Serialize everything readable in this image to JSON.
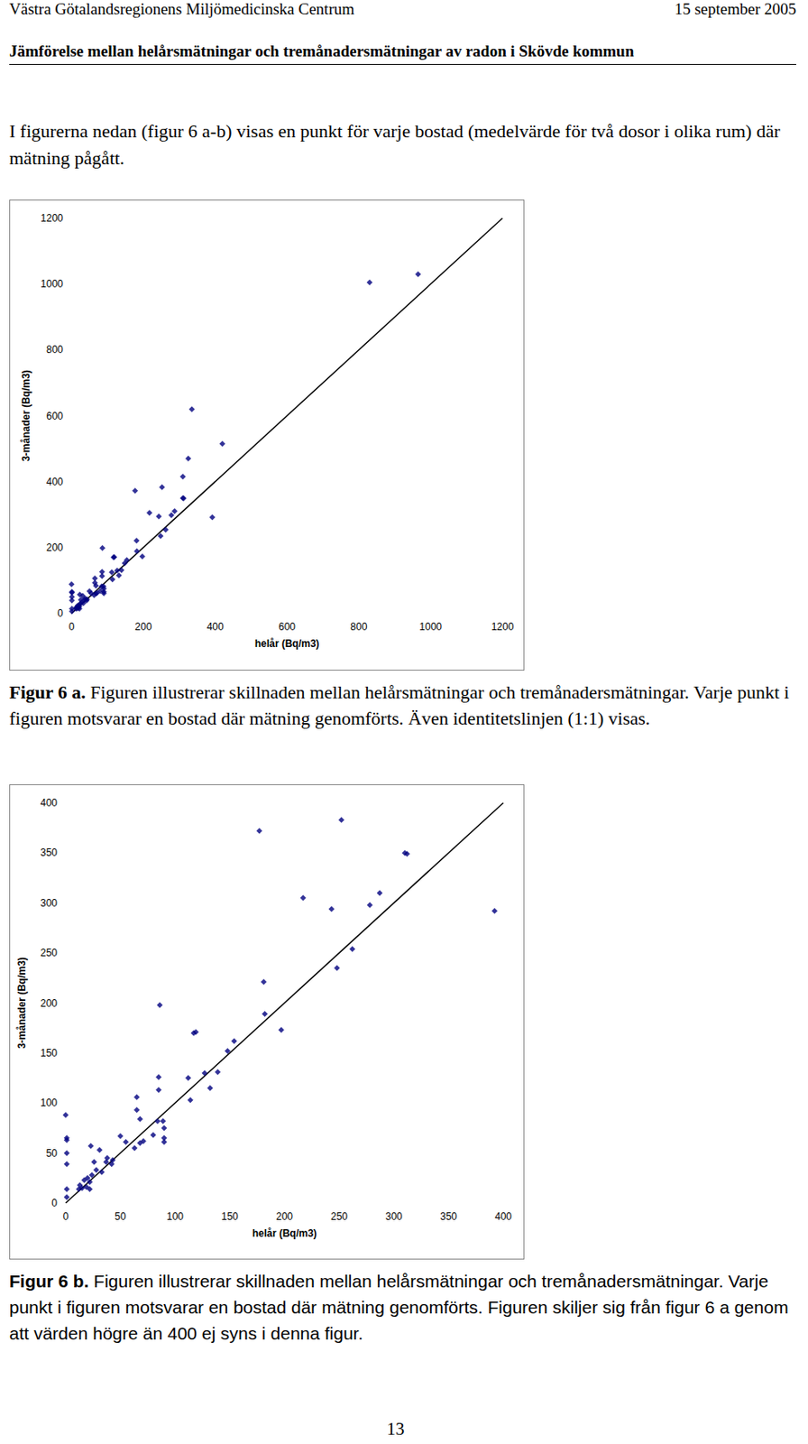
{
  "header": {
    "left": "Västra Götalandsregionens Miljömedicinska Centrum",
    "right": "15 september 2005",
    "title": "Jämförelse mellan helårsmätningar och tremånadersmätningar av radon i Skövde kommun"
  },
  "intro": "I figurerna nedan (figur 6 a-b) visas en punkt för varje bostad (medelvärde för två dosor i olika rum) där mätning pågått.",
  "chart_data": [
    {
      "type": "scatter",
      "xlabel": "helår (Bq/m3)",
      "ylabel": "3-månader (Bq/m3)",
      "xlim": [
        0,
        1200
      ],
      "xticks": [
        0,
        200,
        400,
        600,
        800,
        1000,
        1200
      ],
      "ylim": [
        0,
        1200
      ],
      "yticks": [
        0,
        200,
        400,
        600,
        800,
        1000,
        1200
      ],
      "grid": false,
      "series": [
        {
          "type": "scatter",
          "marker": "diamond",
          "color": "#000080",
          "values": [
            [
              830,
              1005
            ],
            [
              965,
              1030
            ],
            [
              420,
              515
            ],
            [
              335,
              620
            ],
            [
              325,
              470
            ],
            [
              310,
              415
            ],
            [
              177,
              372
            ],
            [
              252,
              383
            ],
            [
              310,
              350
            ],
            [
              312,
              349
            ],
            [
              217,
              305
            ],
            [
              243,
              294
            ],
            [
              287,
              310
            ],
            [
              278,
              298
            ],
            [
              392,
              292
            ],
            [
              262,
              254
            ],
            [
              248,
              235
            ],
            [
              181,
              221
            ],
            [
              182,
              189
            ],
            [
              197,
              173
            ],
            [
              86,
              198
            ],
            [
              117,
              170
            ],
            [
              119,
              171
            ],
            [
              154,
              162
            ],
            [
              148,
              152
            ],
            [
              139,
              131
            ],
            [
              127,
              130
            ],
            [
              112,
              125
            ],
            [
              132,
              115
            ],
            [
              114,
              103
            ],
            [
              85,
              126
            ],
            [
              85,
              113
            ],
            [
              65,
              106
            ],
            [
              65,
              93
            ],
            [
              68,
              84
            ],
            [
              50,
              67
            ],
            [
              55,
              61
            ],
            [
              84,
              82
            ],
            [
              89,
              82
            ],
            [
              90,
              75
            ],
            [
              90,
              65
            ],
            [
              90,
              61
            ],
            [
              80,
              68
            ],
            [
              71,
              62
            ],
            [
              68,
              60
            ],
            [
              63,
              55
            ],
            [
              0,
              88
            ],
            [
              1,
              65
            ],
            [
              1,
              63
            ],
            [
              1,
              50
            ],
            [
              1,
              39
            ],
            [
              1,
              14
            ],
            [
              1,
              6
            ],
            [
              23,
              57
            ],
            [
              31,
              53
            ],
            [
              26,
              41
            ],
            [
              37,
              41
            ],
            [
              42,
              39
            ],
            [
              38,
              45
            ],
            [
              43,
              43
            ],
            [
              33,
              31
            ],
            [
              28,
              33
            ],
            [
              20,
              25
            ],
            [
              22,
              21
            ],
            [
              17,
              23
            ],
            [
              13,
              18
            ],
            [
              19,
              16
            ],
            [
              22,
              14
            ],
            [
              15,
              15
            ],
            [
              12,
              14
            ],
            [
              24,
              28
            ]
          ]
        },
        {
          "type": "line",
          "line_style": "solid",
          "color": "#000000",
          "values": [
            [
              0,
              0
            ],
            [
              1200,
              1200
            ]
          ]
        }
      ]
    },
    {
      "type": "scatter",
      "xlabel": "helår (Bq/m3)",
      "ylabel": "3-månader (Bq/m3)",
      "xlim": [
        0,
        400
      ],
      "xticks": [
        0,
        50,
        100,
        150,
        200,
        250,
        300,
        350,
        400
      ],
      "ylim": [
        0,
        400
      ],
      "yticks": [
        0,
        50,
        100,
        150,
        200,
        250,
        300,
        350,
        400
      ],
      "grid": false,
      "series": [
        {
          "type": "scatter",
          "marker": "diamond",
          "color": "#000080",
          "values": [
            [
              177,
              372
            ],
            [
              252,
              383
            ],
            [
              310,
              350
            ],
            [
              312,
              349
            ],
            [
              217,
              305
            ],
            [
              243,
              294
            ],
            [
              287,
              310
            ],
            [
              278,
              298
            ],
            [
              392,
              292
            ],
            [
              262,
              254
            ],
            [
              248,
              235
            ],
            [
              181,
              221
            ],
            [
              182,
              189
            ],
            [
              197,
              173
            ],
            [
              86,
              198
            ],
            [
              117,
              170
            ],
            [
              119,
              171
            ],
            [
              154,
              162
            ],
            [
              148,
              152
            ],
            [
              139,
              131
            ],
            [
              127,
              130
            ],
            [
              112,
              125
            ],
            [
              132,
              115
            ],
            [
              114,
              103
            ],
            [
              85,
              126
            ],
            [
              85,
              113
            ],
            [
              65,
              106
            ],
            [
              65,
              93
            ],
            [
              68,
              84
            ],
            [
              50,
              67
            ],
            [
              55,
              61
            ],
            [
              84,
              82
            ],
            [
              89,
              82
            ],
            [
              90,
              75
            ],
            [
              90,
              65
            ],
            [
              90,
              61
            ],
            [
              80,
              68
            ],
            [
              71,
              62
            ],
            [
              68,
              60
            ],
            [
              63,
              55
            ],
            [
              0,
              88
            ],
            [
              1,
              65
            ],
            [
              1,
              63
            ],
            [
              1,
              50
            ],
            [
              1,
              39
            ],
            [
              1,
              14
            ],
            [
              1,
              6
            ],
            [
              23,
              57
            ],
            [
              31,
              53
            ],
            [
              26,
              41
            ],
            [
              37,
              41
            ],
            [
              42,
              39
            ],
            [
              38,
              45
            ],
            [
              43,
              43
            ],
            [
              33,
              31
            ],
            [
              28,
              33
            ],
            [
              20,
              25
            ],
            [
              22,
              21
            ],
            [
              17,
              23
            ],
            [
              13,
              18
            ],
            [
              19,
              16
            ],
            [
              22,
              14
            ],
            [
              15,
              15
            ],
            [
              12,
              14
            ],
            [
              24,
              28
            ]
          ]
        },
        {
          "type": "line",
          "line_style": "solid",
          "color": "#000000",
          "values": [
            [
              0,
              0
            ],
            [
              400,
              400
            ]
          ]
        }
      ]
    }
  ],
  "captions": [
    {
      "label": "Figur 6 a.",
      "text": "Figuren illustrerar skillnaden mellan helårsmätningar och tremånadersmätningar. Varje punkt i figuren motsvarar en bostad där mätning genomförts. Även identitetslinjen (1:1) visas."
    },
    {
      "label": "Figur 6 b.",
      "text": "Figuren illustrerar skillnaden mellan helårsmätningar och tremånadersmätningar. Varje punkt i figuren motsvarar en bostad där mätning genomförts. Figuren skiljer sig från figur 6 a genom att värden högre än 400 ej syns i denna figur."
    }
  ],
  "page_number": "13"
}
